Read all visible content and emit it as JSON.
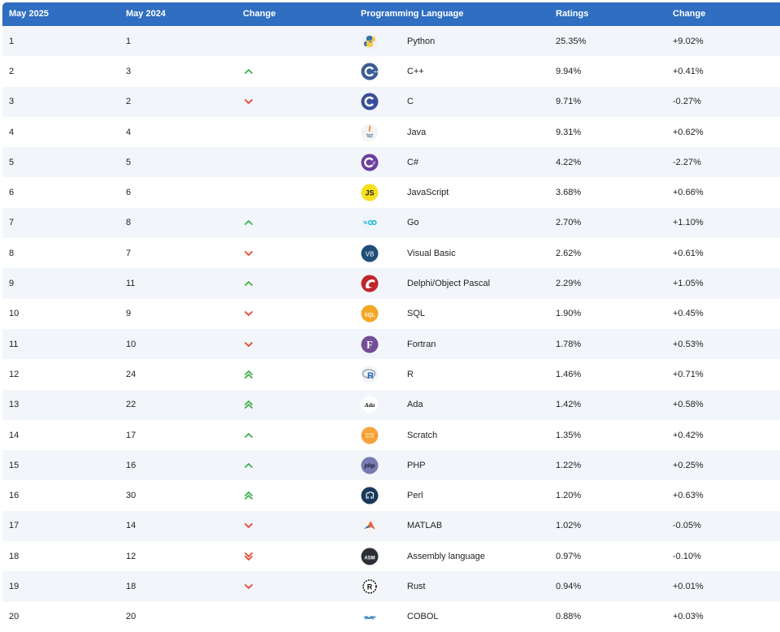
{
  "header": {
    "col_rank_2025": "May 2025",
    "col_rank_2024": "May 2024",
    "col_change": "Change",
    "col_language": "Programming Language",
    "col_ratings": "Ratings",
    "col_ratings_change": "Change"
  },
  "colors": {
    "header_bg": "#2f6ec0",
    "row_alt_bg": "#f2f6fa",
    "arrow_up": "#3fae49",
    "arrow_down": "#e8452c"
  },
  "rows": [
    {
      "rank2025": "1",
      "rank2024": "1",
      "trend": "none",
      "logo": "python-logo-icon",
      "language": "Python",
      "rating": "25.35%",
      "change": "+9.02%"
    },
    {
      "rank2025": "2",
      "rank2024": "3",
      "trend": "up",
      "logo": "cpp-logo-icon",
      "language": "C++",
      "rating": "9.94%",
      "change": "+0.41%"
    },
    {
      "rank2025": "3",
      "rank2024": "2",
      "trend": "down",
      "logo": "c-logo-icon",
      "language": "C",
      "rating": "9.71%",
      "change": "-0.27%"
    },
    {
      "rank2025": "4",
      "rank2024": "4",
      "trend": "none",
      "logo": "java-logo-icon",
      "language": "Java",
      "rating": "9.31%",
      "change": "+0.62%"
    },
    {
      "rank2025": "5",
      "rank2024": "5",
      "trend": "none",
      "logo": "csharp-logo-icon",
      "language": "C#",
      "rating": "4.22%",
      "change": "-2.27%"
    },
    {
      "rank2025": "6",
      "rank2024": "6",
      "trend": "none",
      "logo": "javascript-logo-icon",
      "language": "JavaScript",
      "rating": "3.68%",
      "change": "+0.66%"
    },
    {
      "rank2025": "7",
      "rank2024": "8",
      "trend": "up",
      "logo": "go-logo-icon",
      "language": "Go",
      "rating": "2.70%",
      "change": "+1.10%"
    },
    {
      "rank2025": "8",
      "rank2024": "7",
      "trend": "down",
      "logo": "visual-basic-logo-icon",
      "language": "Visual Basic",
      "rating": "2.62%",
      "change": "+0.61%"
    },
    {
      "rank2025": "9",
      "rank2024": "11",
      "trend": "up",
      "logo": "delphi-logo-icon",
      "language": "Delphi/Object Pascal",
      "rating": "2.29%",
      "change": "+1.05%"
    },
    {
      "rank2025": "10",
      "rank2024": "9",
      "trend": "down",
      "logo": "sql-logo-icon",
      "language": "SQL",
      "rating": "1.90%",
      "change": "+0.45%"
    },
    {
      "rank2025": "11",
      "rank2024": "10",
      "trend": "down",
      "logo": "fortran-logo-icon",
      "language": "Fortran",
      "rating": "1.78%",
      "change": "+0.53%"
    },
    {
      "rank2025": "12",
      "rank2024": "24",
      "trend": "up2",
      "logo": "r-logo-icon",
      "language": "R",
      "rating": "1.46%",
      "change": "+0.71%"
    },
    {
      "rank2025": "13",
      "rank2024": "22",
      "trend": "up2",
      "logo": "ada-logo-icon",
      "language": "Ada",
      "rating": "1.42%",
      "change": "+0.58%"
    },
    {
      "rank2025": "14",
      "rank2024": "17",
      "trend": "up",
      "logo": "scratch-logo-icon",
      "language": "Scratch",
      "rating": "1.35%",
      "change": "+0.42%"
    },
    {
      "rank2025": "15",
      "rank2024": "16",
      "trend": "up",
      "logo": "php-logo-icon",
      "language": "PHP",
      "rating": "1.22%",
      "change": "+0.25%"
    },
    {
      "rank2025": "16",
      "rank2024": "30",
      "trend": "up2",
      "logo": "perl-logo-icon",
      "language": "Perl",
      "rating": "1.20%",
      "change": "+0.63%"
    },
    {
      "rank2025": "17",
      "rank2024": "14",
      "trend": "down",
      "logo": "matlab-logo-icon",
      "language": "MATLAB",
      "rating": "1.02%",
      "change": "-0.05%"
    },
    {
      "rank2025": "18",
      "rank2024": "12",
      "trend": "down2",
      "logo": "assembly-logo-icon",
      "language": "Assembly language",
      "rating": "0.97%",
      "change": "-0.10%"
    },
    {
      "rank2025": "19",
      "rank2024": "18",
      "trend": "down",
      "logo": "rust-logo-icon",
      "language": "Rust",
      "rating": "0.94%",
      "change": "+0.01%"
    },
    {
      "rank2025": "20",
      "rank2024": "20",
      "trend": "none",
      "logo": "cobol-logo-icon",
      "language": "COBOL",
      "rating": "0.88%",
      "change": "+0.03%"
    }
  ]
}
